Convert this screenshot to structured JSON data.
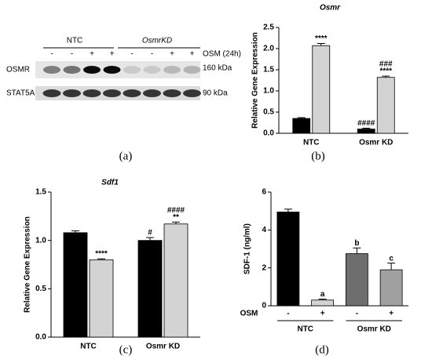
{
  "blot": {
    "groups": [
      "NTC",
      "OsmrKD"
    ],
    "treatment": "OSM (24h)",
    "lanes": [
      "-",
      "-",
      "+",
      "+",
      "-",
      "-",
      "+",
      "+"
    ],
    "rows": [
      "OSMR",
      "STAT5A"
    ],
    "sizes": [
      "160 kDa",
      "90 kDa"
    ],
    "caption": "(a)"
  },
  "chart_data": [
    {
      "type": "bar",
      "title": "Osmr",
      "caption": "(b)",
      "ylabel": "Relative Gene Expression",
      "categories": [
        "NTC",
        "Osmr KD"
      ],
      "ylim": [
        0,
        2.5
      ],
      "yticks": [
        {
          "value": 0,
          "label": "0.0"
        },
        0.5,
        {
          "value": 1,
          "label": "1.0"
        },
        1.5,
        {
          "value": 2,
          "label": "2.0"
        },
        2.5
      ],
      "series": [
        {
          "color": "#000000",
          "values": [
            0.35,
            0.1
          ],
          "errors": [
            0.02,
            0.02
          ],
          "annotations": [
            null,
            [
              "####"
            ]
          ]
        },
        {
          "color": "#d3d3d3",
          "values": [
            2.07,
            1.32
          ],
          "errors": [
            0.05,
            0.03
          ],
          "annotations": [
            [
              "****"
            ],
            [
              "###",
              "****"
            ]
          ]
        }
      ]
    },
    {
      "type": "bar",
      "title": "Sdf1",
      "caption": "(c)",
      "ylabel": "Relative Gene Expression",
      "categories": [
        "NTC",
        "Osmr KD"
      ],
      "ylim": [
        0,
        1.5
      ],
      "yticks": [
        {
          "value": 0,
          "label": "0.0"
        },
        0.5,
        {
          "value": 1,
          "label": "1.0"
        },
        1.5
      ],
      "series": [
        {
          "color": "#000000",
          "values": [
            1.08,
            1.0
          ],
          "errors": [
            0.02,
            0.03
          ],
          "annotations": [
            null,
            [
              "#"
            ]
          ]
        },
        {
          "color": "#d3d3d3",
          "values": [
            0.8,
            1.17
          ],
          "errors": [
            0.01,
            0.02
          ],
          "annotations": [
            [
              "****"
            ],
            [
              "####",
              "**"
            ]
          ]
        }
      ]
    },
    {
      "type": "bar",
      "caption": "(d)",
      "ylabel": "SDF-1 (ng/ml)",
      "rowlabel": "OSM",
      "categories": [
        "-",
        "+",
        "-",
        "+"
      ],
      "groups": [
        "NTC",
        "Osmr KD"
      ],
      "ylim": [
        0,
        6
      ],
      "yticks": [
        0,
        2,
        4,
        6
      ],
      "series": [
        {
          "colors": [
            "#000000",
            "#d3d3d3",
            "#6e6e6e",
            "#a0a0a0"
          ],
          "values": [
            4.95,
            0.3,
            2.75,
            1.9
          ],
          "errors": [
            0.15,
            0.05,
            0.3,
            0.35
          ],
          "annotations": [
            null,
            [
              "a"
            ],
            [
              "b"
            ],
            [
              "c"
            ]
          ]
        }
      ]
    }
  ]
}
